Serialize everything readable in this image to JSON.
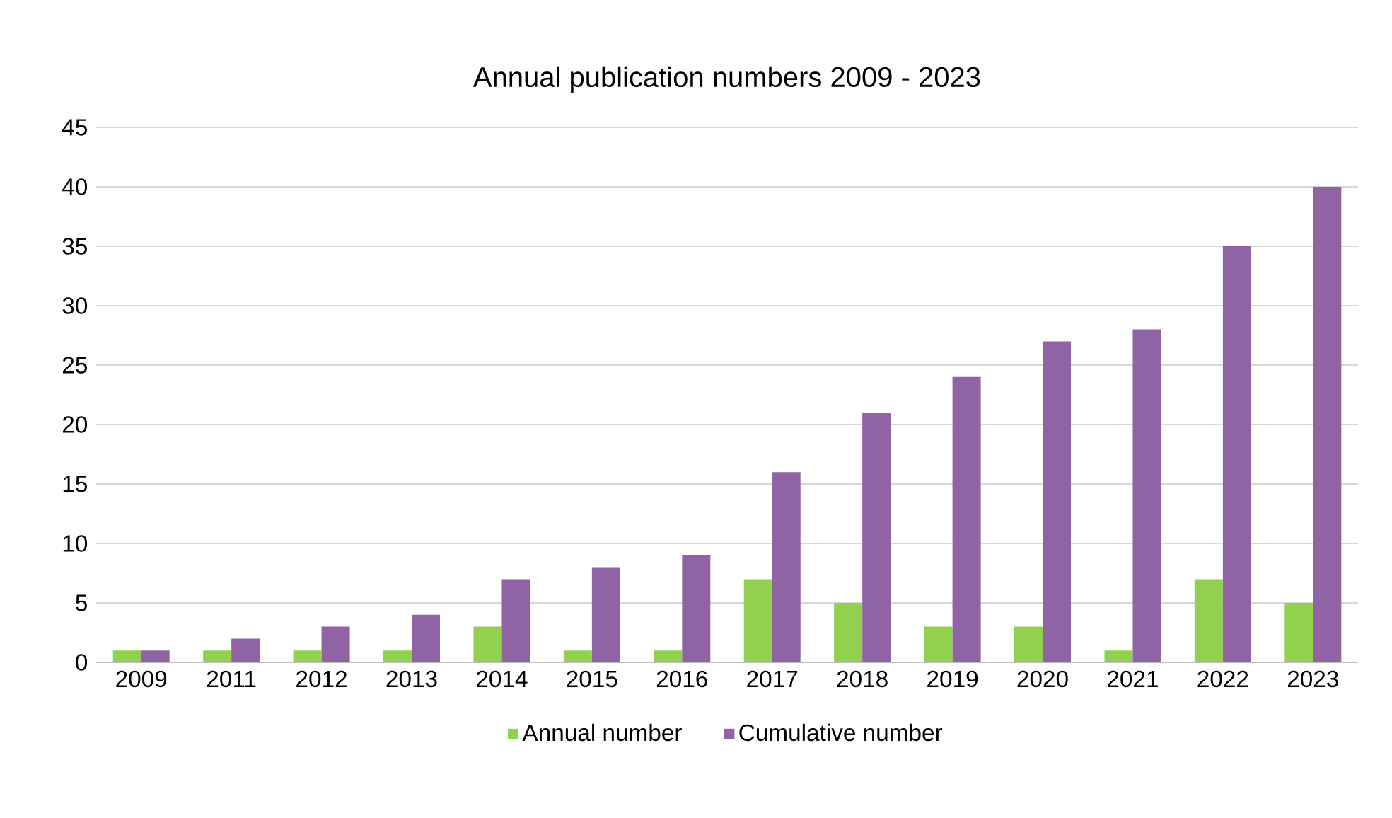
{
  "chart_data": {
    "type": "bar",
    "title": "Annual publication numbers 2009 - 2023",
    "categories": [
      "2009",
      "2011",
      "2012",
      "2013",
      "2014",
      "2015",
      "2016",
      "2017",
      "2018",
      "2019",
      "2020",
      "2021",
      "2022",
      "2023"
    ],
    "series": [
      {
        "name": "Annual number",
        "color": "#92d050",
        "values": [
          1,
          1,
          1,
          1,
          3,
          1,
          1,
          7,
          5,
          3,
          3,
          1,
          7,
          5
        ]
      },
      {
        "name": "Cumulative number",
        "color": "#9064a4",
        "values": [
          1,
          2,
          3,
          4,
          7,
          8,
          9,
          16,
          21,
          24,
          27,
          28,
          35,
          40
        ]
      }
    ],
    "ylim": [
      0,
      45
    ],
    "yticks": [
      0,
      5,
      10,
      15,
      20,
      25,
      30,
      35,
      40,
      45
    ],
    "grid": "y",
    "legend": "bottom"
  }
}
